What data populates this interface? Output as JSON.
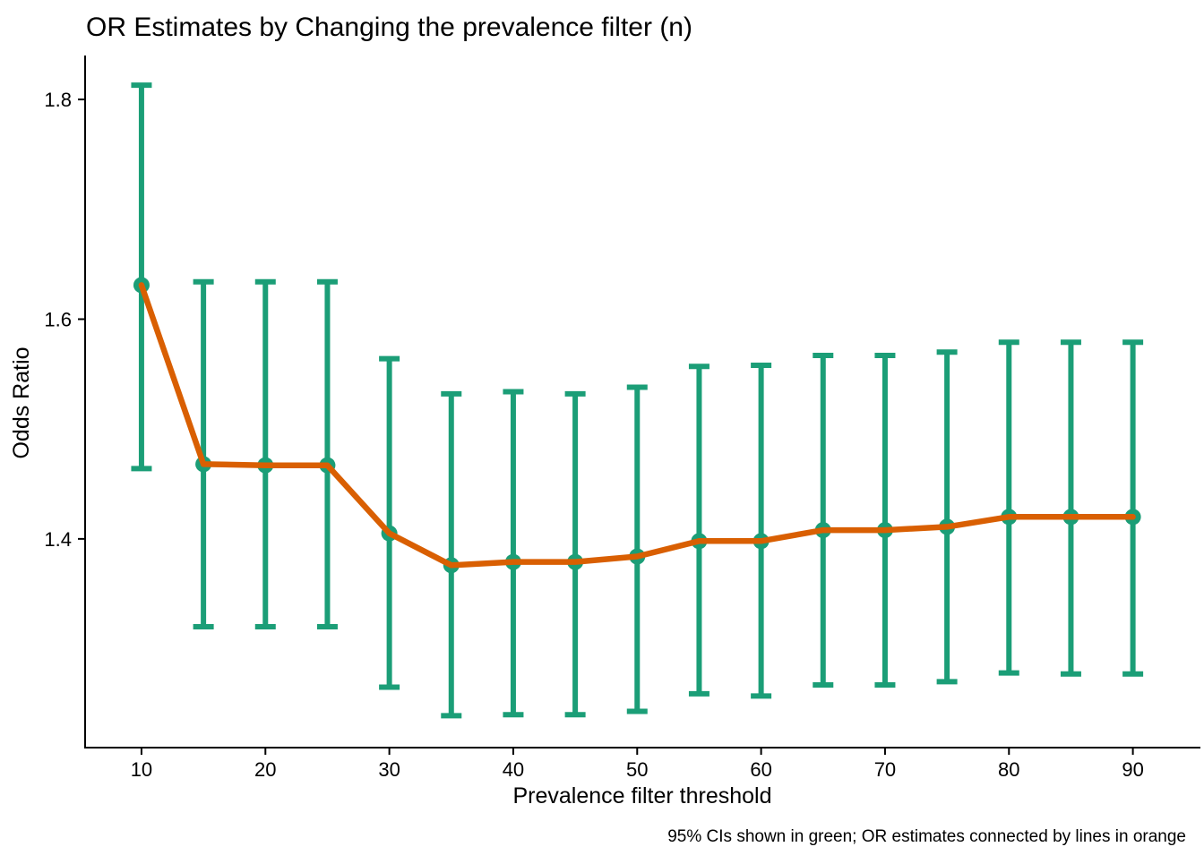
{
  "page": {
    "background": "#FFFFFF"
  },
  "colors": {
    "ci_green": "#1B9E77",
    "or_orange": "#D95F02",
    "axis_black": "#000000",
    "text_black": "#000000"
  },
  "chart_data": {
    "type": "line",
    "title": "OR Estimates by Changing the prevalence filter (n)",
    "xlabel": "Prevalence filter threshold",
    "ylabel": "Odds Ratio",
    "caption": "95% CIs shown in green; OR estimates connected by lines in orange",
    "x": [
      10,
      15,
      20,
      25,
      30,
      35,
      40,
      45,
      50,
      55,
      60,
      65,
      70,
      75,
      80,
      85,
      90
    ],
    "series": [
      {
        "name": "OR estimate",
        "values": [
          1.631,
          1.468,
          1.467,
          1.467,
          1.405,
          1.376,
          1.379,
          1.379,
          1.384,
          1.398,
          1.398,
          1.408,
          1.408,
          1.411,
          1.42,
          1.42,
          1.42
        ]
      }
    ],
    "ci_lower": [
      1.464,
      1.32,
      1.32,
      1.32,
      1.265,
      1.239,
      1.24,
      1.24,
      1.243,
      1.259,
      1.257,
      1.267,
      1.267,
      1.27,
      1.278,
      1.277,
      1.277
    ],
    "ci_upper": [
      1.813,
      1.634,
      1.634,
      1.634,
      1.564,
      1.532,
      1.534,
      1.532,
      1.538,
      1.557,
      1.558,
      1.567,
      1.567,
      1.57,
      1.579,
      1.579,
      1.579
    ],
    "x_ticks": [
      10,
      20,
      30,
      40,
      50,
      60,
      70,
      80,
      90
    ],
    "y_ticks": [
      1.4,
      1.6,
      1.8
    ],
    "xlim": [
      5.45,
      95.45
    ],
    "ylim": [
      1.21,
      1.84
    ],
    "grid": false,
    "legend_position": "none"
  }
}
